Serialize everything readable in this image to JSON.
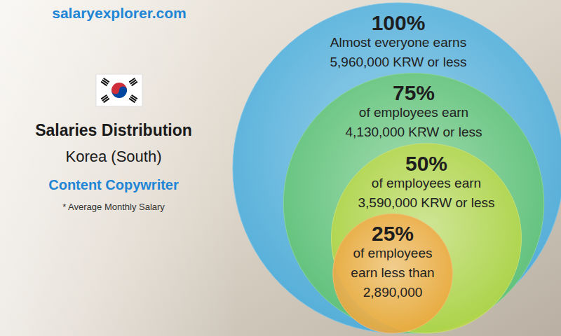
{
  "chart_data": {
    "type": "nested_circles",
    "site": "salaryexplorer.com",
    "title": "Salaries Distribution",
    "subtitle": "Korea (South)",
    "job": "Content Copywriter",
    "note": "* Average Monthly Salary",
    "circles": [
      {
        "percent": {
          "value": 100,
          "label": "100%"
        },
        "text": [
          "Almost everyone earns"
        ],
        "salary": {
          "value": 5960000,
          "label": "5,960,000"
        },
        "unit": "KRW or less",
        "color": "#3fa9dc"
      },
      {
        "percent": {
          "value": 75,
          "label": "75%"
        },
        "text": [
          "of employees earn"
        ],
        "salary": {
          "value": 4130000,
          "label": "4,130,000"
        },
        "unit": "KRW or less",
        "color": "#5cc26a"
      },
      {
        "percent": {
          "value": 50,
          "label": "50%"
        },
        "text": [
          "of employees earn"
        ],
        "salary": {
          "value": 3590000,
          "label": "3,590,000"
        },
        "unit": "KRW or less",
        "color": "#b3d43c"
      },
      {
        "percent": {
          "value": 25,
          "label": "25%"
        },
        "text": [
          "of employees",
          "earn less than"
        ],
        "salary": {
          "value": 2890000,
          "label": "2,890,000"
        },
        "color": "#eea235"
      }
    ]
  }
}
